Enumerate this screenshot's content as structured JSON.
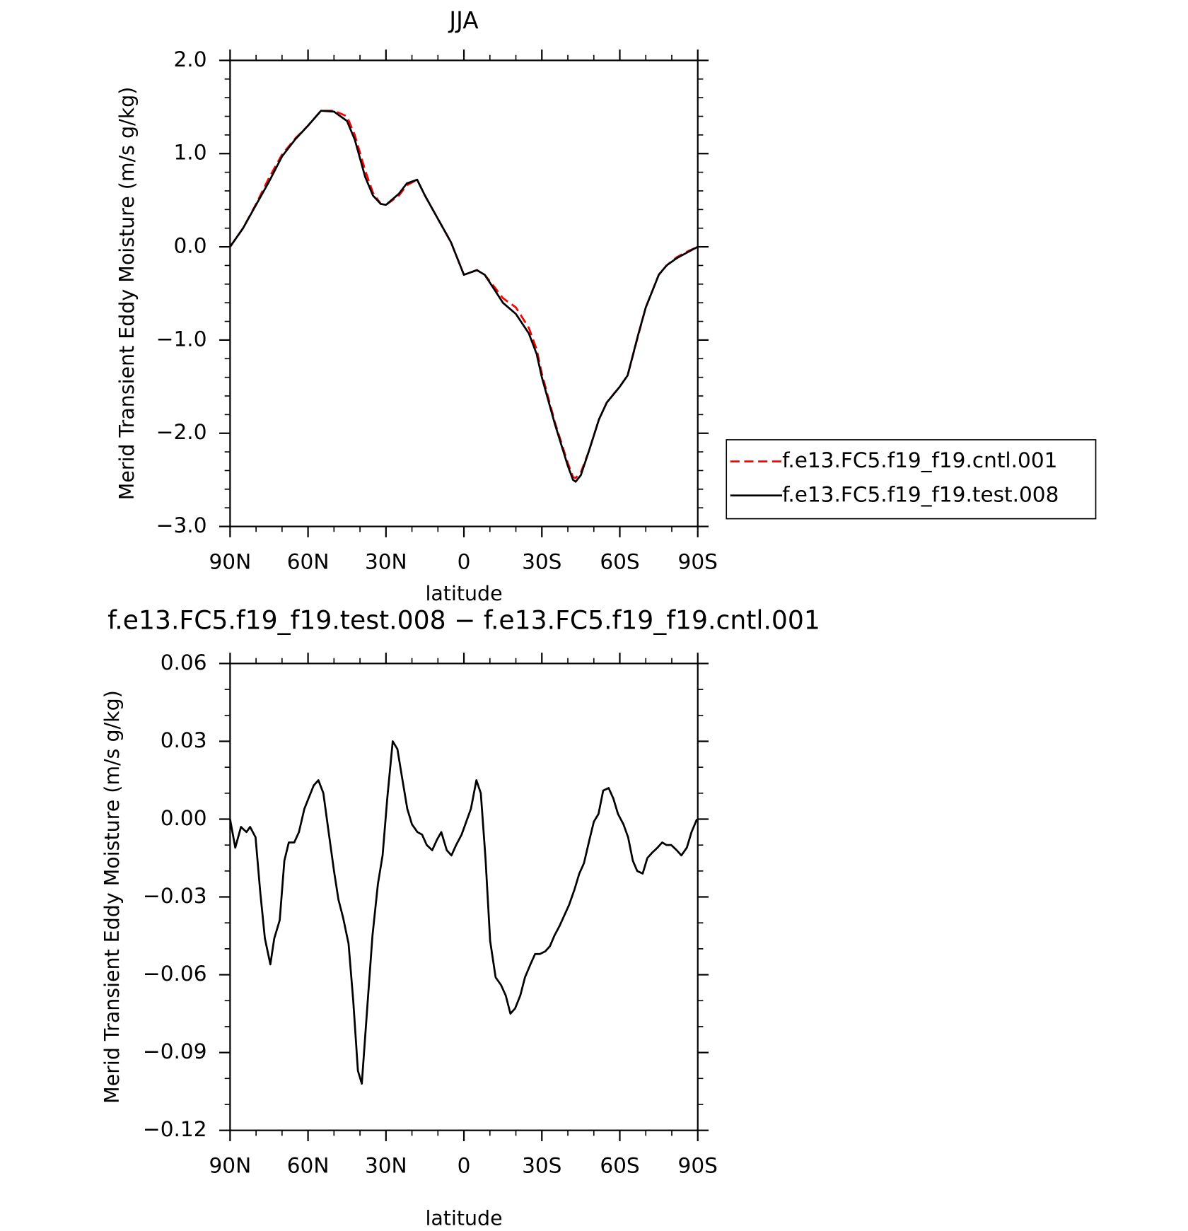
{
  "chart_data": [
    {
      "type": "line",
      "title": "JJA",
      "xlabel": "latitude",
      "ylabel": "Merid Transient Eddy Moisture (m/s g/kg)",
      "xlim": [
        90,
        -90
      ],
      "xticks": [
        {
          "value": 90,
          "label": "90N"
        },
        {
          "value": 60,
          "label": "60N"
        },
        {
          "value": 30,
          "label": "30N"
        },
        0,
        {
          "value": -30,
          "label": "30S"
        },
        {
          "value": -60,
          "label": "60S"
        },
        {
          "value": -90,
          "label": "90S"
        }
      ],
      "ylim": [
        -3,
        2
      ],
      "yticks": [
        {
          "value": 2,
          "label": "2.0"
        },
        {
          "value": 1,
          "label": "1.0"
        },
        {
          "value": 0,
          "label": "0.0"
        },
        {
          "value": -1,
          "label": "−1.0"
        },
        {
          "value": -2,
          "label": "−2.0"
        },
        {
          "value": -3,
          "label": "−3.0"
        }
      ],
      "legend": "right",
      "x": [
        90,
        85,
        80,
        75,
        70,
        65,
        60,
        55,
        50,
        45,
        42,
        38,
        35,
        32,
        30,
        25,
        22,
        18,
        15,
        10,
        5,
        0,
        -3,
        -5,
        -8,
        -12,
        -15,
        -20,
        -25,
        -28,
        -30,
        -35,
        -40,
        -42,
        -43,
        -45,
        -48,
        -52,
        -55,
        -60,
        -63,
        -67,
        -70,
        -75,
        -78,
        -82,
        -86,
        -90
      ],
      "series": [
        {
          "name": "f.e13.FC5.f19_f19.cntl.001",
          "color": "#ff0000",
          "dash": true,
          "values": [
            0.0,
            0.2,
            0.46,
            0.74,
            0.99,
            1.16,
            1.3,
            1.46,
            1.46,
            1.4,
            1.2,
            0.82,
            0.58,
            0.46,
            0.45,
            0.55,
            0.66,
            0.72,
            0.55,
            0.3,
            0.05,
            -0.3,
            -0.27,
            -0.25,
            -0.3,
            -0.44,
            -0.55,
            -0.65,
            -0.87,
            -1.1,
            -1.36,
            -1.88,
            -2.32,
            -2.47,
            -2.48,
            -2.42,
            -2.2,
            -1.85,
            -1.67,
            -1.5,
            -1.38,
            -0.96,
            -0.65,
            -0.3,
            -0.2,
            -0.11,
            -0.05,
            0.0
          ]
        },
        {
          "name": "f.e13.FC5.f19_f19.test.008",
          "color": "#000000",
          "dash": false,
          "values": [
            0.0,
            0.2,
            0.45,
            0.7,
            0.97,
            1.15,
            1.3,
            1.46,
            1.45,
            1.35,
            1.15,
            0.75,
            0.55,
            0.46,
            0.45,
            0.57,
            0.68,
            0.72,
            0.55,
            0.3,
            0.05,
            -0.3,
            -0.27,
            -0.25,
            -0.3,
            -0.47,
            -0.6,
            -0.72,
            -0.93,
            -1.15,
            -1.4,
            -1.9,
            -2.35,
            -2.5,
            -2.52,
            -2.45,
            -2.2,
            -1.85,
            -1.67,
            -1.5,
            -1.38,
            -0.95,
            -0.65,
            -0.3,
            -0.2,
            -0.12,
            -0.06,
            0.0
          ]
        }
      ]
    },
    {
      "type": "line",
      "title": "f.e13.FC5.f19_f19.test.008 − f.e13.FC5.f19_f19.cntl.001",
      "xlabel": "latitude",
      "ylabel": "Merid Transient Eddy Moisture (m/s g/kg)",
      "xlim": [
        90,
        -90
      ],
      "xticks": [
        {
          "value": 90,
          "label": "90N"
        },
        {
          "value": 60,
          "label": "60N"
        },
        {
          "value": 30,
          "label": "30N"
        },
        0,
        {
          "value": -30,
          "label": "30S"
        },
        {
          "value": -60,
          "label": "60S"
        },
        {
          "value": -90,
          "label": "90S"
        }
      ],
      "ylim": [
        -0.12,
        0.06
      ],
      "yticks": [
        {
          "value": 0.06,
          "label": "0.06"
        },
        {
          "value": 0.03,
          "label": "0.03"
        },
        {
          "value": 0,
          "label": "0.00"
        },
        {
          "value": -0.03,
          "label": "−0.03"
        },
        {
          "value": -0.06,
          "label": "−0.06"
        },
        {
          "value": -0.09,
          "label": "−0.09"
        },
        {
          "value": -0.12,
          "label": "−0.12"
        }
      ],
      "x": [
        90,
        88,
        85.8,
        83.7,
        82.3,
        80.2,
        78.4,
        76.6,
        74.5,
        73,
        70.9,
        69.1,
        67.4,
        65.3,
        63.5,
        61.4,
        59,
        57.8,
        56,
        54.1,
        52.2,
        50,
        48.3,
        46.5,
        44.4,
        42.6,
        40.8,
        39.3,
        37.3,
        35.2,
        33.1,
        31.3,
        29.5,
        27.4,
        25.6,
        23.8,
        21.8,
        20,
        17.9,
        16.1,
        14.3,
        12.2,
        10.4,
        8.7,
        6.6,
        4.8,
        3,
        0.9,
        -0.9,
        -2.7,
        -4.8,
        -6.5,
        -8.3,
        -10.1,
        -12.2,
        -14.3,
        -16.1,
        -17.9,
        -19.7,
        -21.7,
        -23.5,
        -25.6,
        -27.4,
        -29.2,
        -31.3,
        -33.1,
        -34.8,
        -36.9,
        -38.7,
        -40.5,
        -42.6,
        -44.4,
        -46.2,
        -48.3,
        -50,
        -51.8,
        -53.6,
        -55.7,
        -57.5,
        -59.3,
        -61.4,
        -63.2,
        -65,
        -66.7,
        -68.8,
        -70.6,
        -72.4,
        -74.5,
        -76.3,
        -78,
        -79.8,
        -81.9,
        -83.7,
        -85.8,
        -87.6,
        -89.7
      ],
      "series": [
        {
          "color": "#000000",
          "values": [
            0,
            -0.011,
            -0.003,
            -0.005,
            -0.003,
            -0.007,
            -0.028,
            -0.046,
            -0.056,
            -0.046,
            -0.039,
            -0.016,
            -0.009,
            -0.009,
            -0.005,
            0.004,
            0.01,
            0.013,
            0.015,
            0.01,
            -0.004,
            -0.02,
            -0.031,
            -0.038,
            -0.048,
            -0.07,
            -0.097,
            -0.102,
            -0.074,
            -0.045,
            -0.025,
            -0.014,
            0.008,
            0.03,
            0.027,
            0.016,
            0.004,
            -0.002,
            -0.005,
            -0.006,
            -0.01,
            -0.012,
            -0.008,
            -0.005,
            -0.012,
            -0.014,
            -0.01,
            -0.006,
            -0.001,
            0.004,
            0.015,
            0.01,
            -0.015,
            -0.047,
            -0.061,
            -0.064,
            -0.068,
            -0.075,
            -0.073,
            -0.068,
            -0.061,
            -0.056,
            -0.052,
            -0.052,
            -0.051,
            -0.049,
            -0.045,
            -0.041,
            -0.037,
            -0.033,
            -0.027,
            -0.021,
            -0.017,
            -0.008,
            -0.001,
            0.002,
            0.011,
            0.012,
            0.008,
            0.002,
            -0.002,
            -0.007,
            -0.016,
            -0.02,
            -0.021,
            -0.015,
            -0.013,
            -0.011,
            -0.009,
            -0.01,
            -0.01,
            -0.012,
            -0.014,
            -0.011,
            -0.005,
            0
          ]
        }
      ]
    }
  ]
}
